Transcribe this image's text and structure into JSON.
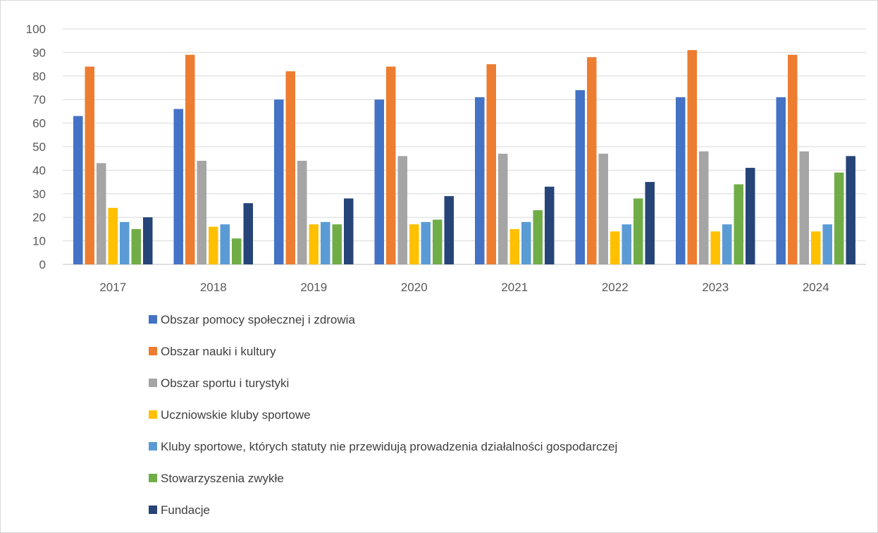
{
  "chart_data": {
    "type": "bar",
    "title": "",
    "xlabel": "",
    "ylabel": "",
    "ylim": [
      0,
      100
    ],
    "yticks": [
      0,
      10,
      20,
      30,
      40,
      50,
      60,
      70,
      80,
      90,
      100
    ],
    "grid": true,
    "legend_position": "bottom",
    "categories": [
      "2017",
      "2018",
      "2019",
      "2020",
      "2021",
      "2022",
      "2023",
      "2024"
    ],
    "series": [
      {
        "name": "Obszar pomocy społecznej i zdrowia",
        "color": "#4472C4",
        "values": [
          63,
          66,
          70,
          70,
          71,
          74,
          71,
          71
        ]
      },
      {
        "name": "Obszar nauki i kultury",
        "color": "#ED7D31",
        "values": [
          84,
          89,
          82,
          84,
          85,
          88,
          91,
          89
        ]
      },
      {
        "name": "Obszar sportu i turystyki",
        "color": "#A5A5A5",
        "values": [
          43,
          44,
          44,
          46,
          47,
          47,
          48,
          48
        ]
      },
      {
        "name": "Uczniowskie kluby sportowe",
        "color": "#FFC000",
        "values": [
          24,
          16,
          17,
          17,
          15,
          14,
          14,
          14
        ]
      },
      {
        "name": "Kluby sportowe, których statuty nie przewidują prowadzenia działalności gospodarczej",
        "color": "#5B9BD5",
        "values": [
          18,
          17,
          18,
          18,
          18,
          17,
          17,
          17
        ]
      },
      {
        "name": "Stowarzyszenia zwykłe",
        "color": "#70AD47",
        "values": [
          15,
          11,
          17,
          19,
          23,
          28,
          34,
          39
        ]
      },
      {
        "name": "Fundacje",
        "color": "#264478",
        "values": [
          20,
          26,
          28,
          29,
          33,
          35,
          41,
          46
        ]
      }
    ]
  }
}
